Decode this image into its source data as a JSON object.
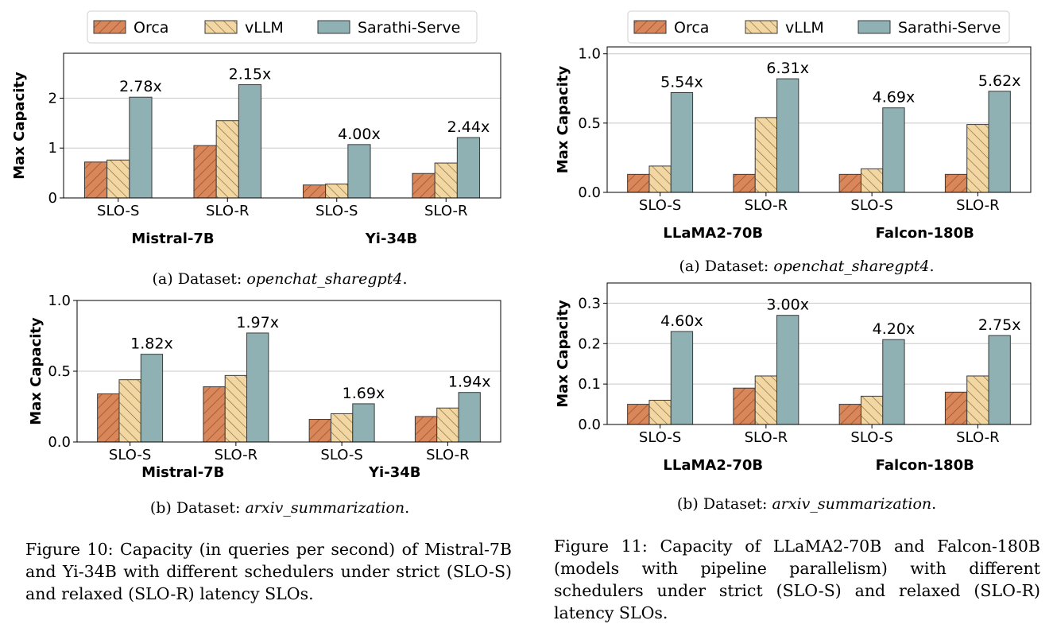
{
  "legend_entries": [
    "Orca",
    "vLLM",
    "Sarathi-Serve"
  ],
  "colors": {
    "orca": "#d8865a",
    "vllm": "#f3d7a2",
    "sarathi": "#8fb1b4",
    "edge": "#3a3a3a",
    "grid": "#c8c8c8"
  },
  "chart_data": [
    {
      "type": "bar",
      "ylabel": "Max Capacity",
      "ylim": [
        0,
        2.9
      ],
      "yticks": [
        0,
        1,
        2
      ],
      "grid": true,
      "legend_placement": "top-center",
      "categories": [
        "SLO-S",
        "SLO-R",
        "SLO-S",
        "SLO-R"
      ],
      "groups": [
        "Mistral-7B",
        "Yi-34B"
      ],
      "series": [
        {
          "name": "Orca",
          "values": [
            0.72,
            1.05,
            0.26,
            0.49
          ]
        },
        {
          "name": "vLLM",
          "values": [
            0.76,
            1.55,
            0.28,
            0.7
          ]
        },
        {
          "name": "Sarathi-Serve",
          "values": [
            2.02,
            2.27,
            1.07,
            1.21
          ]
        }
      ],
      "annotations": [
        "2.78x",
        "2.15x",
        "4.00x",
        "2.44x"
      ],
      "subcaption": {
        "prefix": "(a) Dataset: ",
        "dataset": "openchat_sharegpt4",
        "suffix": "."
      }
    },
    {
      "type": "bar",
      "ylabel": "Max Capacity",
      "ylim": [
        0,
        1.0
      ],
      "yticks": [
        "0.0",
        "0.5",
        "1.0"
      ],
      "grid": true,
      "categories": [
        "SLO-S",
        "SLO-R",
        "SLO-S",
        "SLO-R"
      ],
      "groups": [
        "Mistral-7B",
        "Yi-34B"
      ],
      "series": [
        {
          "name": "Orca",
          "values": [
            0.34,
            0.39,
            0.16,
            0.18
          ]
        },
        {
          "name": "vLLM",
          "values": [
            0.44,
            0.47,
            0.2,
            0.24
          ]
        },
        {
          "name": "Sarathi-Serve",
          "values": [
            0.62,
            0.77,
            0.27,
            0.35
          ]
        }
      ],
      "annotations": [
        "1.82x",
        "1.97x",
        "1.69x",
        "1.94x"
      ],
      "subcaption": {
        "prefix": "(b) Dataset: ",
        "dataset": "arxiv_summarization",
        "suffix": "."
      }
    },
    {
      "type": "bar",
      "ylabel": "Max Capacity",
      "ylim": [
        0,
        1.05
      ],
      "yticks": [
        "0.0",
        "0.5",
        "1.0"
      ],
      "grid": true,
      "legend_placement": "top-center",
      "categories": [
        "SLO-S",
        "SLO-R",
        "SLO-S",
        "SLO-R"
      ],
      "groups": [
        "LLaMA2-70B",
        "Falcon-180B"
      ],
      "series": [
        {
          "name": "Orca",
          "values": [
            0.13,
            0.13,
            0.13,
            0.13
          ]
        },
        {
          "name": "vLLM",
          "values": [
            0.19,
            0.54,
            0.17,
            0.49
          ]
        },
        {
          "name": "Sarathi-Serve",
          "values": [
            0.72,
            0.82,
            0.61,
            0.73
          ]
        }
      ],
      "annotations": [
        "5.54x",
        "6.31x",
        "4.69x",
        "5.62x"
      ],
      "subcaption": {
        "prefix": "(a) Dataset: ",
        "dataset": "openchat_sharegpt4",
        "suffix": "."
      }
    },
    {
      "type": "bar",
      "ylabel": "Max Capacity",
      "ylim": [
        0,
        0.35
      ],
      "yticks": [
        "0.0",
        "0.1",
        "0.2",
        "0.3"
      ],
      "grid": true,
      "categories": [
        "SLO-S",
        "SLO-R",
        "SLO-S",
        "SLO-R"
      ],
      "groups": [
        "LLaMA2-70B",
        "Falcon-180B"
      ],
      "series": [
        {
          "name": "Orca",
          "values": [
            0.05,
            0.09,
            0.05,
            0.08
          ]
        },
        {
          "name": "vLLM",
          "values": [
            0.06,
            0.12,
            0.07,
            0.12
          ]
        },
        {
          "name": "Sarathi-Serve",
          "values": [
            0.23,
            0.27,
            0.21,
            0.22
          ]
        }
      ],
      "annotations": [
        "4.60x",
        "3.00x",
        "4.20x",
        "2.75x"
      ],
      "subcaption": {
        "prefix": "(b) Dataset: ",
        "dataset": "arxiv_summarization",
        "suffix": "."
      }
    }
  ],
  "captions": {
    "fig10": "Figure 10: Capacity (in queries per second) of Mistral-7B and Yi-34B with different schedulers under strict (SLO-S) and relaxed (SLO-R) latency SLOs.",
    "fig11": "Figure 11: Capacity of LLaMA2-70B and Falcon-180B (models with pipeline parallelism) with different schedulers under strict (SLO-S) and relaxed (SLO-R) latency SLOs."
  }
}
